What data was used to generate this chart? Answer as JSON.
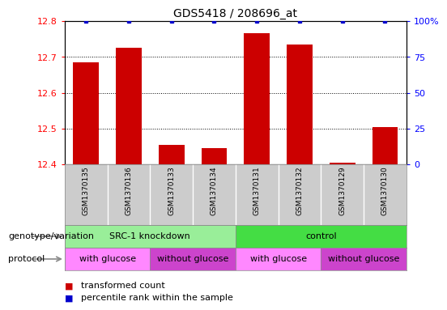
{
  "title": "GDS5418 / 208696_at",
  "samples": [
    "GSM1370135",
    "GSM1370136",
    "GSM1370133",
    "GSM1370134",
    "GSM1370131",
    "GSM1370132",
    "GSM1370129",
    "GSM1370130"
  ],
  "red_values": [
    12.685,
    12.725,
    12.455,
    12.445,
    12.765,
    12.735,
    12.405,
    12.505
  ],
  "blue_values": [
    100,
    100,
    100,
    100,
    100,
    100,
    100,
    100
  ],
  "ylim_left": [
    12.4,
    12.8
  ],
  "ylim_right": [
    0,
    100
  ],
  "yticks_left": [
    12.4,
    12.5,
    12.6,
    12.7,
    12.8
  ],
  "yticks_right": [
    0,
    25,
    50,
    75,
    100
  ],
  "bar_color": "#cc0000",
  "dot_color": "#0000cc",
  "sample_bg_color": "#cccccc",
  "sample_div_color": "#aaaaaa",
  "genotype_groups": [
    {
      "label": "SRC-1 knockdown",
      "start": 0,
      "end": 4,
      "color": "#99ee99"
    },
    {
      "label": "control",
      "start": 4,
      "end": 8,
      "color": "#44dd44"
    }
  ],
  "protocol_groups": [
    {
      "label": "with glucose",
      "start": 0,
      "end": 2,
      "color": "#ff88ff"
    },
    {
      "label": "without glucose",
      "start": 2,
      "end": 4,
      "color": "#cc44cc"
    },
    {
      "label": "with glucose",
      "start": 4,
      "end": 6,
      "color": "#ff88ff"
    },
    {
      "label": "without glucose",
      "start": 6,
      "end": 8,
      "color": "#cc44cc"
    }
  ],
  "legend_items": [
    {
      "label": "transformed count",
      "color": "#cc0000"
    },
    {
      "label": "percentile rank within the sample",
      "color": "#0000cc"
    }
  ],
  "genotype_label": "genotype/variation",
  "protocol_label": "protocol",
  "arrow_color": "#888888"
}
